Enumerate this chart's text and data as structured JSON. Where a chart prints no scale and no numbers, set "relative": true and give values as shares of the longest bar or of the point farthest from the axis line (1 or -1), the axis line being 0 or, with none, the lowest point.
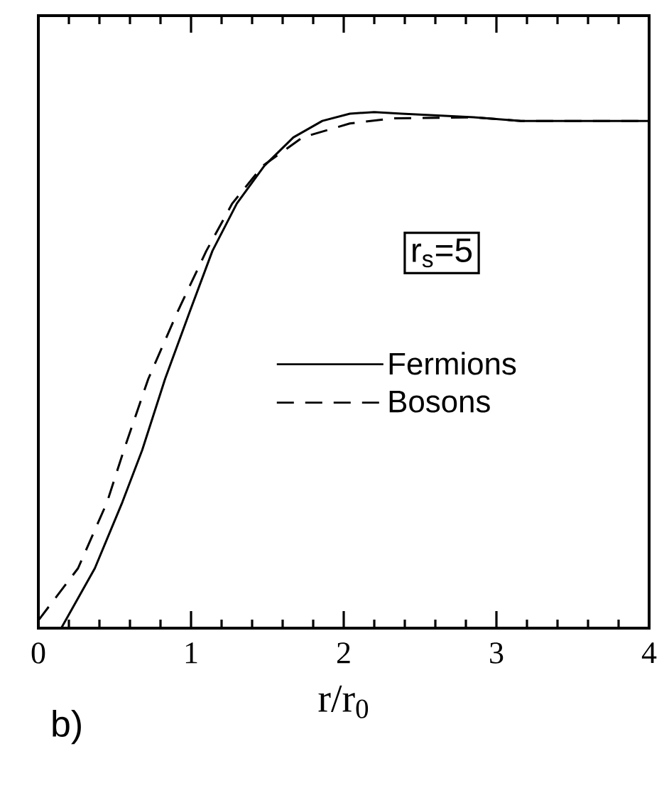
{
  "chart_data": {
    "type": "line",
    "relative": true,
    "xlabel": "r/r$_{0}$",
    "xlim": [
      0,
      4
    ],
    "xticks": [
      0,
      1,
      2,
      3,
      4
    ],
    "legend": "right",
    "grid": false,
    "annotations": [
      "r$_{s}$=5",
      "b)"
    ],
    "series": [
      {
        "name": "Fermions",
        "color": "#000000",
        "line_style": "solid",
        "x": [
          0,
          0.15,
          0.37,
          0.55,
          0.68,
          0.83,
          0.99,
          1.14,
          1.3,
          1.48,
          1.67,
          1.86,
          2.04,
          2.2,
          2.38,
          2.85,
          3.16,
          4.0
        ],
        "values": [
          0,
          0,
          0.116,
          0.244,
          0.345,
          0.483,
          0.612,
          0.731,
          0.823,
          0.896,
          0.951,
          0.983,
          0.997,
          1.0,
          0.997,
          0.99,
          0.983,
          0.983
        ]
      },
      {
        "name": "Bosons",
        "color": "#000000",
        "line_style": "dashed",
        "x": [
          0,
          0.26,
          0.45,
          0.56,
          0.72,
          0.91,
          1.1,
          1.27,
          1.47,
          1.73,
          2.04,
          2.32,
          2.85,
          3.16,
          4.0
        ],
        "values": [
          0.015,
          0.116,
          0.244,
          0.345,
          0.483,
          0.612,
          0.731,
          0.823,
          0.896,
          0.951,
          0.978,
          0.988,
          0.99,
          0.983,
          0.983
        ]
      }
    ]
  }
}
